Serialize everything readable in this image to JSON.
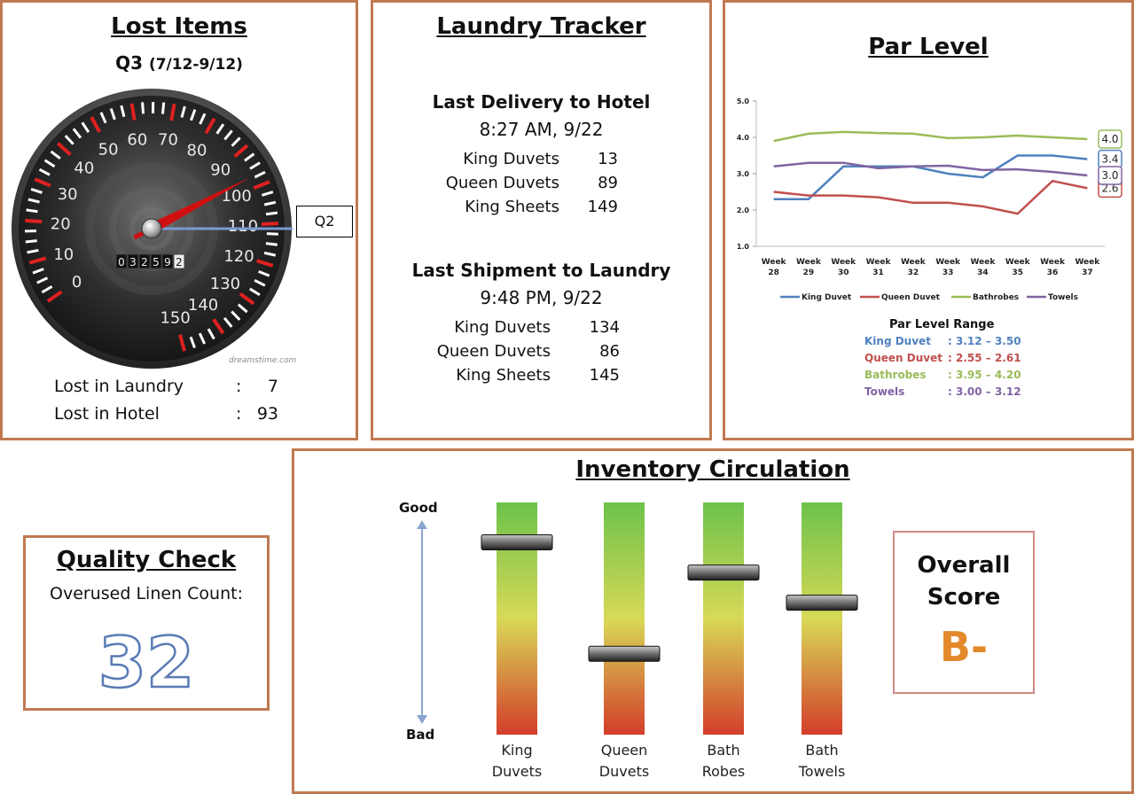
{
  "lost_items": {
    "title": "Lost Items",
    "quarter": "Q3",
    "range": "(7/12-9/12)",
    "callout": "Q2",
    "odometer": [
      "0",
      "3",
      "2",
      "5",
      "9",
      "2"
    ],
    "watermark": "dreamstime.com",
    "gauge_ticks": [
      "0",
      "10",
      "20",
      "30",
      "40",
      "50",
      "60",
      "70",
      "80",
      "90",
      "100",
      "110",
      "120",
      "130",
      "140",
      "150"
    ],
    "needle_value": 97,
    "q2_value": 118,
    "rows": [
      {
        "label": "Lost in Laundry",
        "sep": ":",
        "value": "7"
      },
      {
        "label": "Lost in Hotel",
        "sep": ":",
        "value": "93"
      }
    ]
  },
  "laundry": {
    "title": "Laundry Tracker",
    "delivery": {
      "heading": "Last Delivery to Hotel",
      "time": "8:27 AM, 9/22",
      "items": [
        {
          "label": "King Duvets",
          "value": "13"
        },
        {
          "label": "Queen Duvets",
          "value": "89"
        },
        {
          "label": "King Sheets",
          "value": "149"
        }
      ]
    },
    "shipment": {
      "heading": "Last Shipment to Laundry",
      "time": "9:48 PM, 9/22",
      "items": [
        {
          "label": "King Duvets",
          "value": "134"
        },
        {
          "label": "Queen Duvets",
          "value": "86"
        },
        {
          "label": "King Sheets",
          "value": "145"
        }
      ]
    }
  },
  "chart_data": {
    "type": "line",
    "title": "Par Level",
    "categories": [
      "Week 28",
      "Week 29",
      "Week 30",
      "Week 31",
      "Week 32",
      "Week 33",
      "Week 34",
      "Week 35",
      "Week 36",
      "Week 37"
    ],
    "yticks": [
      "5.0",
      "4.0",
      "3.0",
      "2.0",
      "1.0"
    ],
    "ylim": [
      1.0,
      5.0
    ],
    "series": [
      {
        "name": "King Duvet",
        "color": "#4f81bd",
        "values": [
          2.3,
          2.3,
          3.2,
          3.2,
          3.2,
          3.0,
          2.9,
          3.5,
          3.5,
          3.4
        ],
        "end_label": "3.4"
      },
      {
        "name": "Queen Duvet",
        "color": "#c0504d",
        "values": [
          2.5,
          2.4,
          2.4,
          2.35,
          2.2,
          2.2,
          2.1,
          1.9,
          2.8,
          2.6
        ],
        "end_label": "2.6"
      },
      {
        "name": "Bathrobes",
        "color": "#9bbb59",
        "values": [
          3.9,
          4.1,
          4.15,
          4.12,
          4.1,
          3.98,
          4.0,
          4.05,
          4.0,
          3.95
        ],
        "end_label": "4.0"
      },
      {
        "name": "Towels",
        "color": "#8064a2",
        "values": [
          3.2,
          3.3,
          3.3,
          3.15,
          3.2,
          3.22,
          3.1,
          3.12,
          3.05,
          2.95
        ],
        "end_label": "3.0"
      }
    ],
    "range_title": "Par Level Range",
    "ranges": [
      {
        "name": "King Duvet",
        "range": ": 3.12 – 3.50",
        "color": "#4f81bd"
      },
      {
        "name": "Queen Duvet",
        "range": ": 2.55 – 2.61",
        "color": "#c0504d"
      },
      {
        "name": "Bathrobes",
        "range": ": 3.95 – 4.20",
        "color": "#9bbb59"
      },
      {
        "name": "Towels",
        "range": ": 3.00 – 3.12",
        "color": "#8064a2"
      }
    ]
  },
  "quality": {
    "title": "Quality Check",
    "label": "Overused Linen Count:",
    "value": "32"
  },
  "inventory": {
    "title": "Inventory Circulation",
    "good_label": "Good",
    "bad_label": "Bad",
    "bars": [
      {
        "line1": "King",
        "line2": "Duvets",
        "level": 0.83
      },
      {
        "line1": "Queen",
        "line2": "Duvets",
        "level": 0.35
      },
      {
        "line1": "Bath",
        "line2": "Robes",
        "level": 0.7
      },
      {
        "line1": "Bath",
        "line2": "Towels",
        "level": 0.57
      }
    ],
    "score_line1": "Overall",
    "score_line2": "Score",
    "grade": "B-",
    "grade_color": "#e3892b"
  }
}
